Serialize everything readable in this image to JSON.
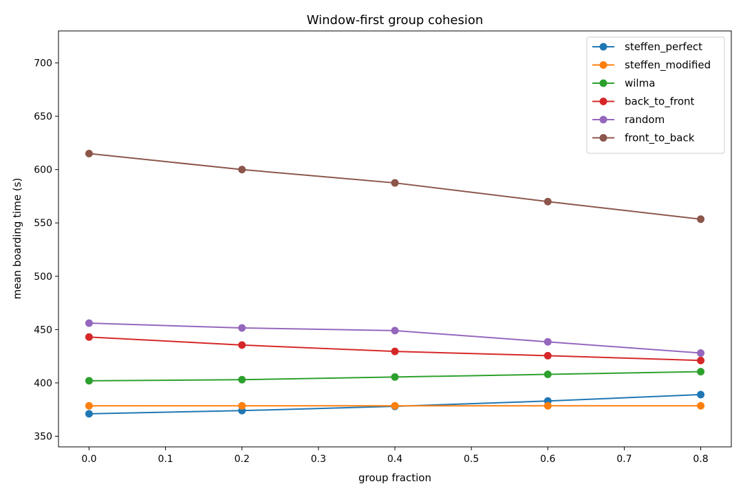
{
  "chart_data": {
    "type": "line",
    "title": "Window-first group cohesion",
    "xlabel": "group fraction",
    "ylabel": "mean boarding time (s)",
    "xlim": [
      -0.04,
      0.84
    ],
    "ylim": [
      340,
      730
    ],
    "xticks": [
      0.0,
      0.1,
      0.2,
      0.3,
      0.4,
      0.5,
      0.6,
      0.7,
      0.8
    ],
    "xtick_labels": [
      "0.0",
      "0.1",
      "0.2",
      "0.3",
      "0.4",
      "0.5",
      "0.6",
      "0.7",
      "0.8"
    ],
    "yticks": [
      350,
      400,
      450,
      500,
      550,
      600,
      650,
      700
    ],
    "ytick_labels": [
      "350",
      "400",
      "450",
      "500",
      "550",
      "600",
      "650",
      "700"
    ],
    "grid": false,
    "legend_position": "top-right",
    "x": [
      0.0,
      0.2,
      0.4,
      0.6,
      0.8
    ],
    "series": [
      {
        "name": "steffen_perfect",
        "color": "#1f77b4",
        "values": [
          371,
          374,
          378,
          383,
          389
        ]
      },
      {
        "name": "steffen_modified",
        "color": "#ff7f0e",
        "values": [
          378.5,
          378.5,
          378.5,
          378.5,
          378.5
        ]
      },
      {
        "name": "wilma",
        "color": "#2ca02c",
        "values": [
          402,
          403,
          405.5,
          408,
          410.5
        ]
      },
      {
        "name": "back_to_front",
        "color": "#d62728",
        "values": [
          443,
          435.5,
          429.5,
          425.5,
          421
        ]
      },
      {
        "name": "random",
        "color": "#9467bd",
        "values": [
          456,
          451.5,
          449,
          438.5,
          428
        ]
      },
      {
        "name": "front_to_back",
        "color": "#8c564b",
        "values": [
          615,
          600,
          587.5,
          570,
          553.5
        ]
      }
    ]
  }
}
